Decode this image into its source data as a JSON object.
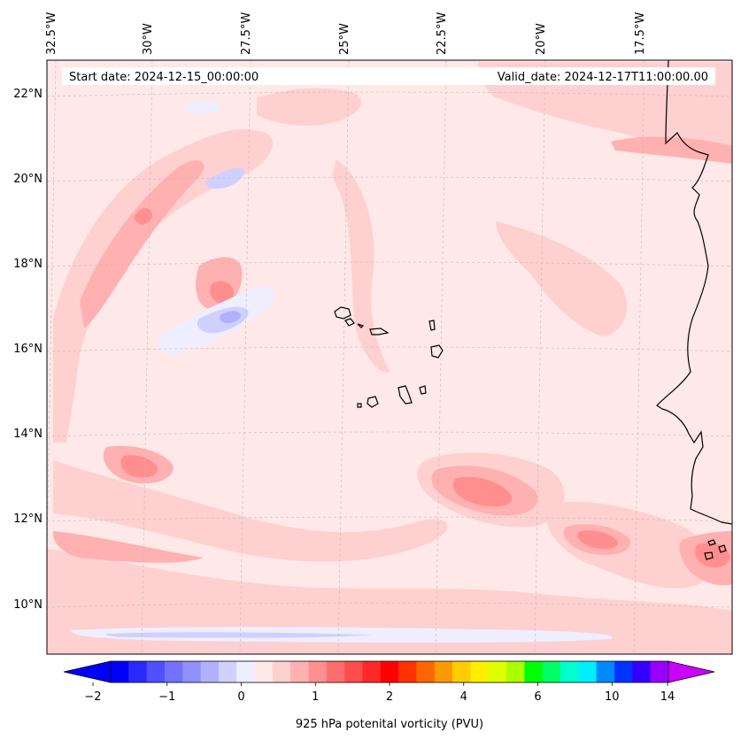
{
  "map": {
    "start_date_label": "Start date: 2024-12-15_00:00:00",
    "valid_date_label": "Valid_date: 2024-12-17T11:00:00.00",
    "lon_labels": [
      "32.5°W",
      "30°W",
      "27.5°W",
      "25°W",
      "22.5°W",
      "20°W",
      "17.5°W"
    ],
    "lat_labels": [
      "22°N",
      "20°N",
      "18°N",
      "16°N",
      "14°N",
      "12°N",
      "10°N"
    ],
    "background_color": "#ffe8e8",
    "coastline_color": "#000000"
  },
  "colorbar": {
    "label": "925 hPa potenital vorticity (PVU)",
    "tick_labels": [
      "−2",
      "−1",
      "0",
      "1",
      "2",
      "4",
      "6",
      "10",
      "14"
    ],
    "colors": [
      "#0000ff",
      "#2a2aff",
      "#5050ff",
      "#7272ff",
      "#9090ff",
      "#b0b0ff",
      "#d0d0ff",
      "#eeeeff",
      "#ffe8e8",
      "#ffd0d0",
      "#ffb0b0",
      "#ff9090",
      "#ff6e6e",
      "#ff4c4c",
      "#ff2828",
      "#ff0000",
      "#ff3300",
      "#ff6600",
      "#ff9900",
      "#ffcc00",
      "#ffee00",
      "#ddff00",
      "#aaff00",
      "#00ff00",
      "#00ff66",
      "#00ffcc",
      "#00eeff",
      "#0088ff",
      "#0033ff",
      "#3300ff",
      "#9900ff"
    ],
    "extend_min_color": "#0000ff",
    "extend_max_color": "#cc00ff"
  }
}
